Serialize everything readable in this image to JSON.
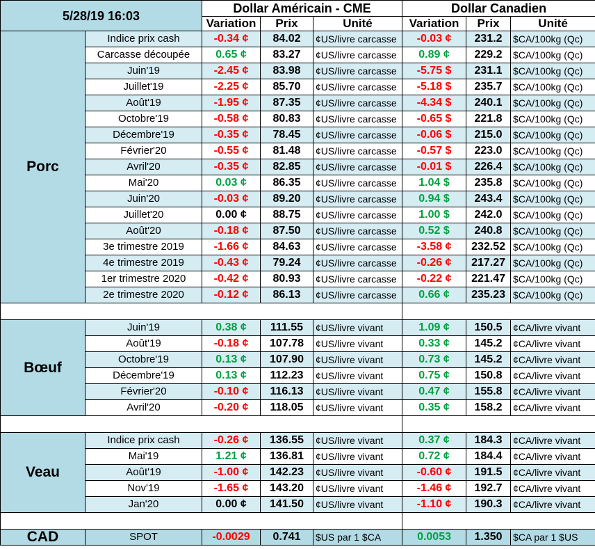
{
  "header": {
    "datetime": "5/28/19 16:03",
    "usd_title": "Dollar Américain - CME",
    "cad_title": "Dollar Canadien",
    "col_variation": "Variation",
    "col_prix": "Prix",
    "col_unite": "Unité"
  },
  "colors": {
    "negative": "#ff0000",
    "positive": "#00a040",
    "row_light": "#d6ecf3",
    "row_dark": "#b3dbe6"
  },
  "groups": [
    {
      "name": "Porc",
      "rows": [
        {
          "label": "Indice prix cash",
          "usd_var": "-0.34 ¢",
          "usd_price": "84.02",
          "usd_unit": "¢US/livre carcasse",
          "cad_var": "-0.03 ¢",
          "cad_price": "231.2",
          "cad_unit": "$CA/100kg (Qc)"
        },
        {
          "label": "Carcasse découpée",
          "usd_var": "0.65 ¢",
          "usd_price": "83.27",
          "usd_unit": "¢US/livre carcasse",
          "cad_var": "0.89 ¢",
          "cad_price": "229.2",
          "cad_unit": "$CA/100kg (Qc)"
        },
        {
          "label": "Juin'19",
          "usd_var": "-2.45 ¢",
          "usd_price": "83.98",
          "usd_unit": "¢US/livre carcasse",
          "cad_var": "-5.75 $",
          "cad_price": "231.1",
          "cad_unit": "$CA/100kg (Qc)"
        },
        {
          "label": "Juillet'19",
          "usd_var": "-2.25 ¢",
          "usd_price": "85.70",
          "usd_unit": "¢US/livre carcasse",
          "cad_var": "-5.18 $",
          "cad_price": "235.7",
          "cad_unit": "$CA/100kg (Qc)"
        },
        {
          "label": "Août'19",
          "usd_var": "-1.95 ¢",
          "usd_price": "87.35",
          "usd_unit": "¢US/livre carcasse",
          "cad_var": "-4.34 $",
          "cad_price": "240.1",
          "cad_unit": "$CA/100kg (Qc)"
        },
        {
          "label": "Octobre'19",
          "usd_var": "-0.58 ¢",
          "usd_price": "80.83",
          "usd_unit": "¢US/livre carcasse",
          "cad_var": "-0.65 $",
          "cad_price": "221.8",
          "cad_unit": "$CA/100kg (Qc)"
        },
        {
          "label": "Décembre'19",
          "usd_var": "-0.35 ¢",
          "usd_price": "78.45",
          "usd_unit": "¢US/livre carcasse",
          "cad_var": "-0.06 $",
          "cad_price": "215.0",
          "cad_unit": "$CA/100kg (Qc)"
        },
        {
          "label": "Février'20",
          "usd_var": "-0.55 ¢",
          "usd_price": "81.48",
          "usd_unit": "¢US/livre carcasse",
          "cad_var": "-0.57 $",
          "cad_price": "223.0",
          "cad_unit": "$CA/100kg (Qc)"
        },
        {
          "label": "Avril'20",
          "usd_var": "-0.35 ¢",
          "usd_price": "82.85",
          "usd_unit": "¢US/livre carcasse",
          "cad_var": "-0.01 $",
          "cad_price": "226.4",
          "cad_unit": "$CA/100kg (Qc)"
        },
        {
          "label": "Mai'20",
          "usd_var": "0.03 ¢",
          "usd_price": "86.35",
          "usd_unit": "¢US/livre carcasse",
          "cad_var": "1.04 $",
          "cad_price": "235.8",
          "cad_unit": "$CA/100kg (Qc)"
        },
        {
          "label": "Juin'20",
          "usd_var": "-0.03 ¢",
          "usd_price": "89.20",
          "usd_unit": "¢US/livre carcasse",
          "cad_var": "0.94 $",
          "cad_price": "243.4",
          "cad_unit": "$CA/100kg (Qc)"
        },
        {
          "label": "Juillet'20",
          "usd_var": "0.00 ¢",
          "usd_price": "88.75",
          "usd_unit": "¢US/livre carcasse",
          "cad_var": "1.00 $",
          "cad_price": "242.0",
          "cad_unit": "$CA/100kg (Qc)"
        },
        {
          "label": "Août'20",
          "usd_var": "-0.18 ¢",
          "usd_price": "87.50",
          "usd_unit": "¢US/livre carcasse",
          "cad_var": "0.52 $",
          "cad_price": "240.8",
          "cad_unit": "$CA/100kg (Qc)"
        },
        {
          "label": "3e trimestre 2019",
          "usd_var": "-1.66 ¢",
          "usd_price": "84.63",
          "usd_unit": "¢US/livre carcasse",
          "cad_var": "-3.58 ¢",
          "cad_price": "232.52",
          "cad_unit": "$CA/100kg (Qc)"
        },
        {
          "label": "4e trimestre 2019",
          "usd_var": "-0.43 ¢",
          "usd_price": "79.24",
          "usd_unit": "¢US/livre carcasse",
          "cad_var": "-0.26 ¢",
          "cad_price": "217.27",
          "cad_unit": "$CA/100kg (Qc)"
        },
        {
          "label": "1er trimestre 2020",
          "usd_var": "-0.42 ¢",
          "usd_price": "80.93",
          "usd_unit": "¢US/livre carcasse",
          "cad_var": "-0.22 ¢",
          "cad_price": "221.47",
          "cad_unit": "$CA/100kg (Qc)"
        },
        {
          "label": "2e trimestre 2020",
          "usd_var": "-0.12 ¢",
          "usd_price": "86.13",
          "usd_unit": "¢US/livre carcasse",
          "cad_var": "0.66 ¢",
          "cad_price": "235.23",
          "cad_unit": "$CA/100kg (Qc)"
        }
      ]
    },
    {
      "name": "Bœuf",
      "rows": [
        {
          "label": "Juin'19",
          "usd_var": "0.38 ¢",
          "usd_price": "111.55",
          "usd_unit": "¢US/livre vivant",
          "cad_var": "1.09 ¢",
          "cad_price": "150.5",
          "cad_unit": "¢CA/livre vivant"
        },
        {
          "label": "Août'19",
          "usd_var": "-0.18 ¢",
          "usd_price": "107.78",
          "usd_unit": "¢US/livre vivant",
          "cad_var": "0.33 ¢",
          "cad_price": "145.2",
          "cad_unit": "¢CA/livre vivant"
        },
        {
          "label": "Octobre'19",
          "usd_var": "0.13 ¢",
          "usd_price": "107.90",
          "usd_unit": "¢US/livre vivant",
          "cad_var": "0.73 ¢",
          "cad_price": "145.2",
          "cad_unit": "¢CA/livre vivant"
        },
        {
          "label": "Décembre'19",
          "usd_var": "0.13 ¢",
          "usd_price": "112.23",
          "usd_unit": "¢US/livre vivant",
          "cad_var": "0.75 ¢",
          "cad_price": "150.8",
          "cad_unit": "¢CA/livre vivant"
        },
        {
          "label": "Février'20",
          "usd_var": "-0.10 ¢",
          "usd_price": "116.13",
          "usd_unit": "¢US/livre vivant",
          "cad_var": "0.47 ¢",
          "cad_price": "155.8",
          "cad_unit": "¢CA/livre vivant"
        },
        {
          "label": "Avril'20",
          "usd_var": "-0.20 ¢",
          "usd_price": "118.05",
          "usd_unit": "¢US/livre vivant",
          "cad_var": "0.35 ¢",
          "cad_price": "158.2",
          "cad_unit": "¢CA/livre vivant"
        }
      ]
    },
    {
      "name": "Veau",
      "rows": [
        {
          "label": "Indice prix cash",
          "usd_var": "-0.26 ¢",
          "usd_price": "136.55",
          "usd_unit": "¢US/livre vivant",
          "cad_var": "0.37 ¢",
          "cad_price": "184.3",
          "cad_unit": "¢CA/livre vivant"
        },
        {
          "label": "Mai'19",
          "usd_var": "1.21 ¢",
          "usd_price": "136.81",
          "usd_unit": "¢US/livre vivant",
          "cad_var": "0.72 ¢",
          "cad_price": "184.4",
          "cad_unit": "¢CA/livre vivant"
        },
        {
          "label": "Août'19",
          "usd_var": "-1.00 ¢",
          "usd_price": "142.23",
          "usd_unit": "¢US/livre vivant",
          "cad_var": "-0.60 ¢",
          "cad_price": "191.5",
          "cad_unit": "¢CA/livre vivant"
        },
        {
          "label": "Nov'19",
          "usd_var": "-1.65 ¢",
          "usd_price": "143.20",
          "usd_unit": "¢US/livre vivant",
          "cad_var": "-1.46 ¢",
          "cad_price": "192.7",
          "cad_unit": "¢CA/livre vivant"
        },
        {
          "label": "Jan'20",
          "usd_var": "0.00 ¢",
          "usd_price": "141.50",
          "usd_unit": "¢US/livre vivant",
          "cad_var": "-1.10 ¢",
          "cad_price": "190.3",
          "cad_unit": "¢CA/livre vivant"
        }
      ]
    }
  ],
  "cad_row": {
    "name": "CAD",
    "label": "SPOT",
    "usd_var": "-0.0029",
    "usd_price": "0.741",
    "usd_unit": "$US par 1 $CA",
    "cad_var": "0.0053",
    "cad_price": "1.350",
    "cad_unit": "$CA par 1 $US"
  }
}
